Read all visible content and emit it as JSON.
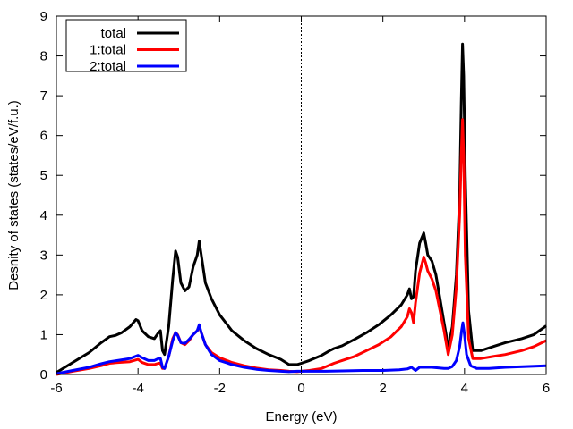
{
  "chart_data": {
    "type": "line",
    "title": "",
    "xlabel": "Energy (eV)",
    "ylabel": "Desnity of states (states/eV/f.u.)",
    "xlim": [
      -6,
      6
    ],
    "ylim": [
      0,
      9
    ],
    "xticks": [
      -6,
      -4,
      -2,
      0,
      2,
      4,
      6
    ],
    "yticks": [
      0,
      1,
      2,
      3,
      4,
      5,
      6,
      7,
      8,
      9
    ],
    "grid": false,
    "legend_position": "top-left",
    "fermi_level_marker": {
      "x": 0,
      "style": "dotted"
    },
    "series": [
      {
        "name": "total",
        "color": "#000000",
        "x": [
          -6.0,
          -5.6,
          -5.2,
          -4.9,
          -4.7,
          -4.55,
          -4.4,
          -4.2,
          -4.05,
          -4.0,
          -3.9,
          -3.75,
          -3.6,
          -3.5,
          -3.45,
          -3.4,
          -3.35,
          -3.25,
          -3.15,
          -3.08,
          -3.03,
          -2.95,
          -2.85,
          -2.75,
          -2.65,
          -2.55,
          -2.5,
          -2.45,
          -2.35,
          -2.2,
          -2.0,
          -1.7,
          -1.4,
          -1.1,
          -0.8,
          -0.5,
          -0.3,
          -0.1,
          0.0,
          0.2,
          0.5,
          0.7,
          0.8,
          1.0,
          1.3,
          1.6,
          1.9,
          2.2,
          2.45,
          2.6,
          2.65,
          2.7,
          2.75,
          2.8,
          2.9,
          3.0,
          3.05,
          3.1,
          3.2,
          3.3,
          3.4,
          3.5,
          3.55,
          3.6,
          3.7,
          3.8,
          3.88,
          3.92,
          3.95,
          3.98,
          4.02,
          4.1,
          4.2,
          4.4,
          4.7,
          5.0,
          5.4,
          5.7,
          6.0
        ],
        "y": [
          0.05,
          0.3,
          0.55,
          0.8,
          0.95,
          0.98,
          1.05,
          1.2,
          1.38,
          1.35,
          1.1,
          0.95,
          0.9,
          1.05,
          1.1,
          0.6,
          0.5,
          1.2,
          2.4,
          3.1,
          2.95,
          2.3,
          2.1,
          2.2,
          2.7,
          3.0,
          3.35,
          3.0,
          2.3,
          1.9,
          1.5,
          1.1,
          0.85,
          0.65,
          0.5,
          0.38,
          0.25,
          0.25,
          0.28,
          0.35,
          0.48,
          0.6,
          0.65,
          0.72,
          0.88,
          1.05,
          1.25,
          1.5,
          1.75,
          2.0,
          2.15,
          1.9,
          1.95,
          2.6,
          3.3,
          3.55,
          3.3,
          3.0,
          2.85,
          2.5,
          1.9,
          1.3,
          1.0,
          0.65,
          1.2,
          2.5,
          4.5,
          6.8,
          8.3,
          7.5,
          5.0,
          1.6,
          0.6,
          0.6,
          0.7,
          0.8,
          0.9,
          1.0,
          1.22
        ]
      },
      {
        "name": "1:total",
        "color": "#ff0000",
        "x": [
          -6.0,
          -5.6,
          -5.2,
          -4.9,
          -4.7,
          -4.5,
          -4.2,
          -4.0,
          -3.9,
          -3.75,
          -3.6,
          -3.5,
          -3.45,
          -3.4,
          -3.35,
          -3.25,
          -3.15,
          -3.08,
          -3.03,
          -2.95,
          -2.85,
          -2.75,
          -2.65,
          -2.55,
          -2.5,
          -2.45,
          -2.35,
          -2.2,
          -2.0,
          -1.7,
          -1.4,
          -1.1,
          -0.8,
          -0.5,
          -0.3,
          -0.1,
          0.0,
          0.2,
          0.5,
          0.8,
          1.0,
          1.3,
          1.6,
          1.9,
          2.2,
          2.45,
          2.6,
          2.65,
          2.7,
          2.75,
          2.8,
          2.9,
          3.0,
          3.05,
          3.1,
          3.2,
          3.3,
          3.4,
          3.5,
          3.55,
          3.6,
          3.7,
          3.8,
          3.88,
          3.92,
          3.95,
          3.98,
          4.02,
          4.1,
          4.2,
          4.4,
          4.7,
          5.0,
          5.4,
          5.7,
          6.0
        ],
        "y": [
          0.0,
          0.08,
          0.15,
          0.22,
          0.28,
          0.3,
          0.32,
          0.38,
          0.3,
          0.25,
          0.25,
          0.28,
          0.28,
          0.15,
          0.15,
          0.45,
          0.9,
          1.05,
          1.0,
          0.8,
          0.75,
          0.85,
          1.0,
          1.1,
          1.2,
          1.05,
          0.75,
          0.55,
          0.42,
          0.3,
          0.22,
          0.16,
          0.12,
          0.1,
          0.08,
          0.07,
          0.08,
          0.1,
          0.15,
          0.28,
          0.35,
          0.45,
          0.6,
          0.75,
          0.95,
          1.2,
          1.45,
          1.65,
          1.55,
          1.3,
          1.8,
          2.55,
          2.95,
          2.8,
          2.6,
          2.4,
          2.1,
          1.6,
          1.1,
          0.8,
          0.5,
          1.0,
          2.2,
          4.0,
          5.5,
          6.4,
          5.5,
          3.0,
          0.9,
          0.4,
          0.4,
          0.45,
          0.5,
          0.6,
          0.7,
          0.85
        ]
      },
      {
        "name": "2:total",
        "color": "#0000ff",
        "x": [
          -6.0,
          -5.6,
          -5.2,
          -4.9,
          -4.7,
          -4.5,
          -4.2,
          -4.0,
          -3.9,
          -3.75,
          -3.6,
          -3.5,
          -3.45,
          -3.4,
          -3.35,
          -3.25,
          -3.15,
          -3.08,
          -3.03,
          -2.95,
          -2.85,
          -2.75,
          -2.65,
          -2.55,
          -2.5,
          -2.45,
          -2.35,
          -2.2,
          -2.0,
          -1.7,
          -1.4,
          -1.1,
          -0.8,
          -0.5,
          -0.3,
          -0.1,
          0.0,
          0.3,
          0.6,
          1.0,
          1.5,
          2.0,
          2.4,
          2.6,
          2.7,
          2.8,
          2.9,
          3.2,
          3.5,
          3.6,
          3.7,
          3.8,
          3.88,
          3.93,
          3.96,
          4.0,
          4.05,
          4.15,
          4.3,
          4.6,
          5.0,
          5.5,
          6.0
        ],
        "y": [
          0.02,
          0.1,
          0.18,
          0.27,
          0.32,
          0.35,
          0.4,
          0.48,
          0.42,
          0.35,
          0.35,
          0.4,
          0.4,
          0.18,
          0.15,
          0.45,
          0.85,
          1.05,
          0.98,
          0.8,
          0.78,
          0.88,
          1.0,
          1.1,
          1.25,
          1.05,
          0.75,
          0.5,
          0.35,
          0.25,
          0.18,
          0.13,
          0.1,
          0.08,
          0.07,
          0.08,
          0.08,
          0.08,
          0.08,
          0.09,
          0.1,
          0.1,
          0.12,
          0.14,
          0.18,
          0.1,
          0.18,
          0.18,
          0.15,
          0.15,
          0.2,
          0.35,
          0.7,
          1.1,
          1.3,
          1.0,
          0.5,
          0.22,
          0.15,
          0.15,
          0.18,
          0.2,
          0.22
        ]
      }
    ]
  }
}
